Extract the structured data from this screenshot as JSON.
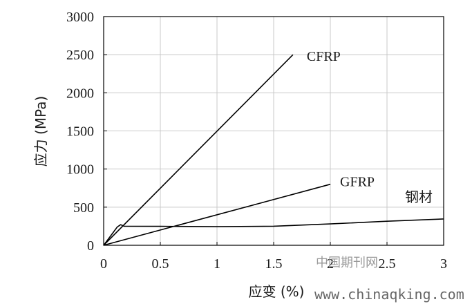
{
  "chart_data": {
    "type": "line",
    "xlabel": "应变 (%)",
    "ylabel": "应力 (MPa)",
    "xlim": [
      0,
      3
    ],
    "ylim": [
      0,
      3000
    ],
    "x_ticks": [
      0,
      0.5,
      1,
      1.5,
      2,
      2.5,
      3
    ],
    "x_tick_labels": [
      "0",
      "0.5",
      "1",
      "1.5",
      "2",
      "2.5",
      "3"
    ],
    "y_ticks": [
      0,
      500,
      1000,
      1500,
      2000,
      2500,
      3000
    ],
    "y_tick_labels": [
      "0",
      "500",
      "1000",
      "1500",
      "2000",
      "2500",
      "3000"
    ],
    "grid": true,
    "series": [
      {
        "name": "CFRP",
        "x": [
          0,
          1.67
        ],
        "y": [
          0,
          2500
        ]
      },
      {
        "name": "GFRP",
        "x": [
          0,
          2.0
        ],
        "y": [
          0,
          800
        ]
      },
      {
        "name": "钢材",
        "x": [
          0,
          0.12,
          0.15,
          0.18,
          0.5,
          1.0,
          1.5,
          2.0,
          2.5,
          3.0
        ],
        "y": [
          0,
          240,
          270,
          250,
          248,
          244,
          250,
          280,
          315,
          345
        ]
      }
    ]
  },
  "watermark": {
    "cn": "中国期刊网",
    "url": "www.chinaqking.com"
  }
}
